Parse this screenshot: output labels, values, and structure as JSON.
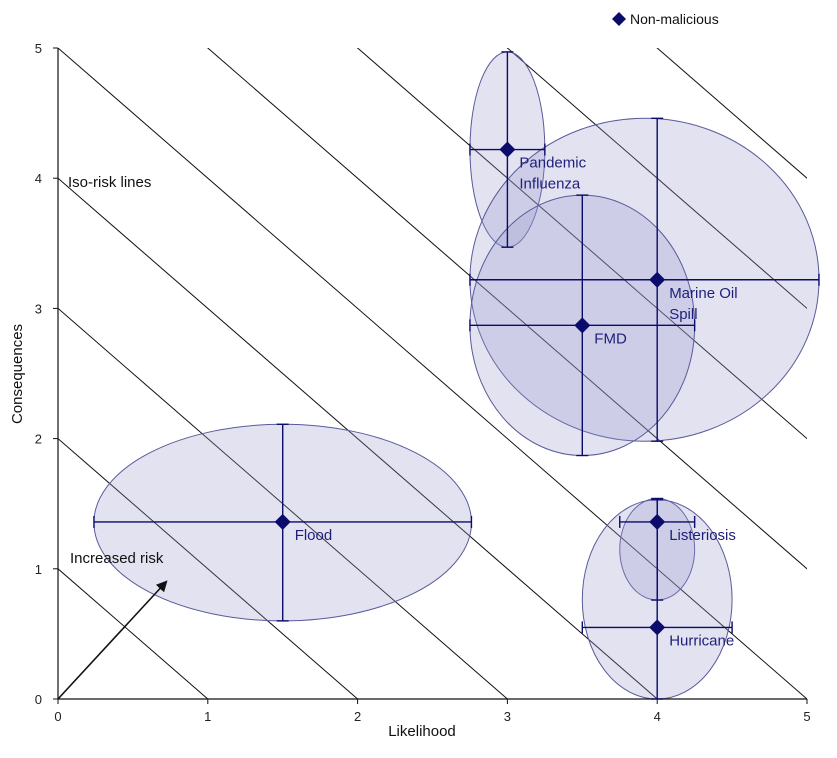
{
  "chart_data": {
    "type": "scatter",
    "xlabel": "Likelihood",
    "ylabel": "Consequences",
    "xlim": [
      0,
      5
    ],
    "ylim": [
      0,
      5
    ],
    "xticks": [
      0,
      1,
      2,
      3,
      4,
      5
    ],
    "yticks": [
      0,
      1,
      2,
      3,
      4,
      5
    ],
    "legend": {
      "label": "Non-malicious",
      "position": "top-right"
    },
    "annotations": {
      "iso_risk": "Iso-risk lines",
      "increased_risk": "Increased risk"
    },
    "series": [
      {
        "name": "Non-malicious",
        "color": "#0b0b6b",
        "points": [
          {
            "label": "Pandemic\nInfluenza",
            "x": 3.0,
            "y": 4.22,
            "x_err": [
              0.25,
              0.25
            ],
            "y_err": [
              0.75,
              0.75
            ]
          },
          {
            "label": "Marine Oil\nSpill",
            "x": 4.0,
            "y": 3.22,
            "x_err": [
              1.25,
              1.08
            ],
            "y_err": [
              1.24,
              1.24
            ]
          },
          {
            "label": "FMD",
            "x": 3.5,
            "y": 2.87,
            "x_err": [
              0.75,
              0.75
            ],
            "y_err": [
              1.0,
              1.0
            ]
          },
          {
            "label": "Flood",
            "x": 1.5,
            "y": 1.36,
            "x_err": [
              1.26,
              1.26
            ],
            "y_err": [
              0.76,
              0.75
            ]
          },
          {
            "label": "Listeriosis",
            "x": 4.0,
            "y": 1.36,
            "x_err": [
              0.25,
              0.25
            ],
            "y_err": [
              0.6,
              0.18
            ]
          },
          {
            "label": "Hurricane",
            "x": 4.0,
            "y": 0.55,
            "x_err": [
              0.5,
              0.5
            ],
            "y_err": [
              0.55,
              0.98
            ]
          }
        ]
      }
    ]
  }
}
